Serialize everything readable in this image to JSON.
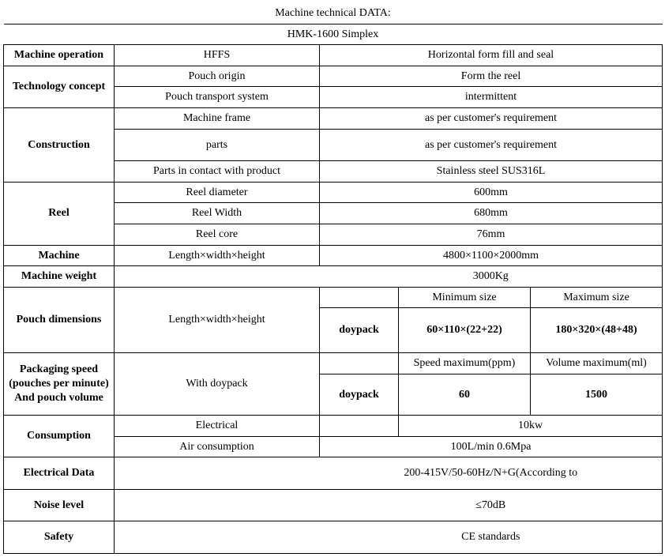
{
  "title": "Machine technical DATA:",
  "subtitle": "HMK-1600 Simplex",
  "rows": {
    "machine_op": {
      "label": "Machine operation",
      "param": "HFFS",
      "value": "Horizontal form fill and seal"
    },
    "tech_concept": {
      "label": "Technology concept",
      "r1": {
        "param": "Pouch origin",
        "value": "Form the reel"
      },
      "r2": {
        "param": "Pouch transport system",
        "value": "intermittent"
      }
    },
    "construction": {
      "label": "Construction",
      "r1": {
        "param": "Machine frame",
        "value": "as per customer's requirement"
      },
      "r2": {
        "param": "parts",
        "value": "as per customer's requirement"
      },
      "r3": {
        "param": "Parts in contact with product",
        "value": "Stainless steel SUS316L"
      }
    },
    "reel": {
      "label": "Reel",
      "r1": {
        "param": "Reel diameter",
        "value": "600mm"
      },
      "r2": {
        "param": "Reel Width",
        "value": "680mm"
      },
      "r3": {
        "param": "Reel core",
        "value": "76mm"
      }
    },
    "machine": {
      "label": "Machine",
      "param": "Length×width×height",
      "value": "4800×1100×2000mm"
    },
    "weight": {
      "label": "Machine weight",
      "value": "3000Kg"
    },
    "pouch_dim": {
      "label": "Pouch dimensions",
      "param": "Length×width×height",
      "hdr_min": "Minimum size",
      "hdr_max": "Maximum size",
      "type": "doypack",
      "min": "60×110×(22+22)",
      "max": "180×320×(48+48)"
    },
    "speed": {
      "label": "Packaging speed (pouches per minute) And pouch volume",
      "param": "With doypack",
      "hdr_speed": "Speed maximum(ppm)",
      "hdr_vol": "Volume maximum(ml)",
      "type": "doypack",
      "spd": "60",
      "vol": "1500"
    },
    "consumption": {
      "label": "Consumption",
      "r1": {
        "param": "Electrical",
        "value": "10kw"
      },
      "r2": {
        "param": "Air consumption",
        "value": "100L/min 0.6Mpa"
      }
    },
    "electrical": {
      "label": "Electrical Data",
      "value": "200-415V/50-60Hz/N+G(According to"
    },
    "noise": {
      "label": "Noise level",
      "value": "≤70dB"
    },
    "safety": {
      "label": "Safety",
      "value": "CE standards"
    }
  }
}
